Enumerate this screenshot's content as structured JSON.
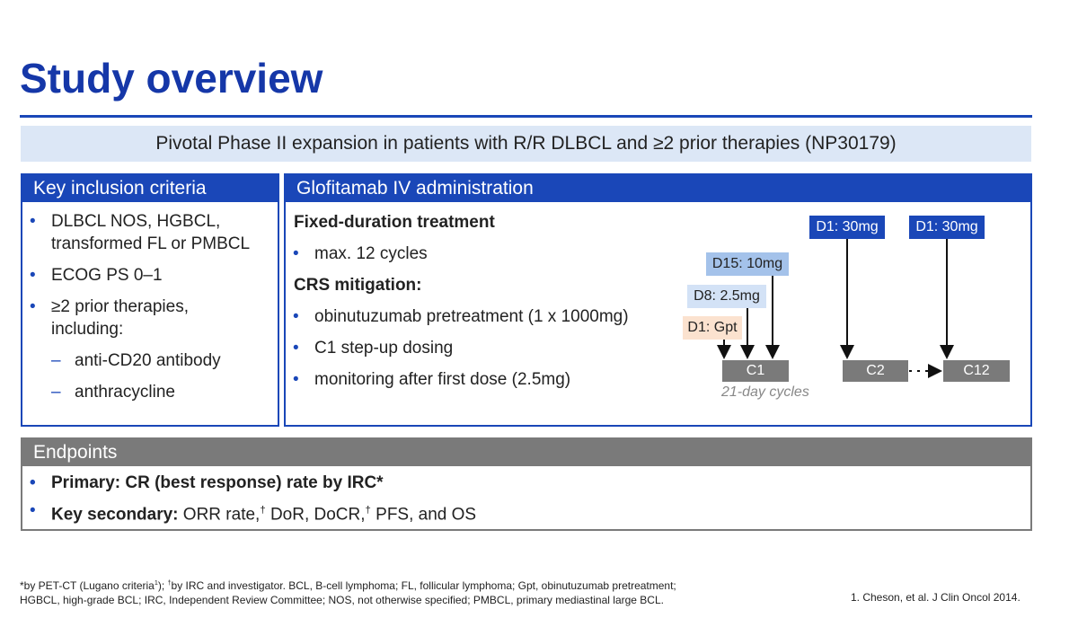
{
  "header": {
    "title": "Study overview",
    "banner": "Pivotal Phase II expansion in patients with R/R DLBCL and ≥2 prior therapies (NP30179)"
  },
  "inclusion": {
    "title": "Key inclusion criteria",
    "items": [
      "DLBCL NOS, HGBCL, transformed FL or PMBCL",
      "ECOG PS 0–1",
      "≥2 prior therapies, including:"
    ],
    "subitems": [
      "anti-CD20 antibody",
      "anthracycline"
    ]
  },
  "administration": {
    "title": "Glofitamab IV administration",
    "sections": [
      {
        "heading": "Fixed-duration treatment",
        "items": [
          "max. 12 cycles"
        ]
      },
      {
        "heading": "CRS mitigation:",
        "items": [
          "obinutuzumab pretreatment (1 x 1000mg)",
          "C1 step-up dosing",
          "monitoring after first dose (2.5mg)"
        ]
      }
    ],
    "diagram": {
      "doses": [
        "D1: Gpt",
        "D8: 2.5mg",
        "D15: 10mg",
        "D1: 30mg",
        "D1: 30mg"
      ],
      "cycles": [
        "C1",
        "C2",
        "C12"
      ],
      "caption": "21-day cycles"
    }
  },
  "endpoints": {
    "title": "Endpoints",
    "primary": "Primary: CR (best response) rate by IRC*",
    "secondary_label": "Key secondary:",
    "secondary_parts": [
      " ORR rate,",
      "†",
      " DoR, DoCR,",
      "†",
      " PFS, and OS"
    ]
  },
  "footnotes": {
    "line1_parts": [
      "*by PET-CT (Lugano criteria",
      "1",
      "); ",
      "†",
      "by IRC and investigator. BCL, B-cell lymphoma; FL, follicular lymphoma; Gpt, obinutuzumab pretreatment;"
    ],
    "line2": "HGBCL, high-grade BCL; IRC, Independent Review Committee; NOS, not otherwise specified; PMBCL, primary mediastinal large BCL."
  },
  "reference": "1. Cheson, et al. J Clin Oncol 2014."
}
